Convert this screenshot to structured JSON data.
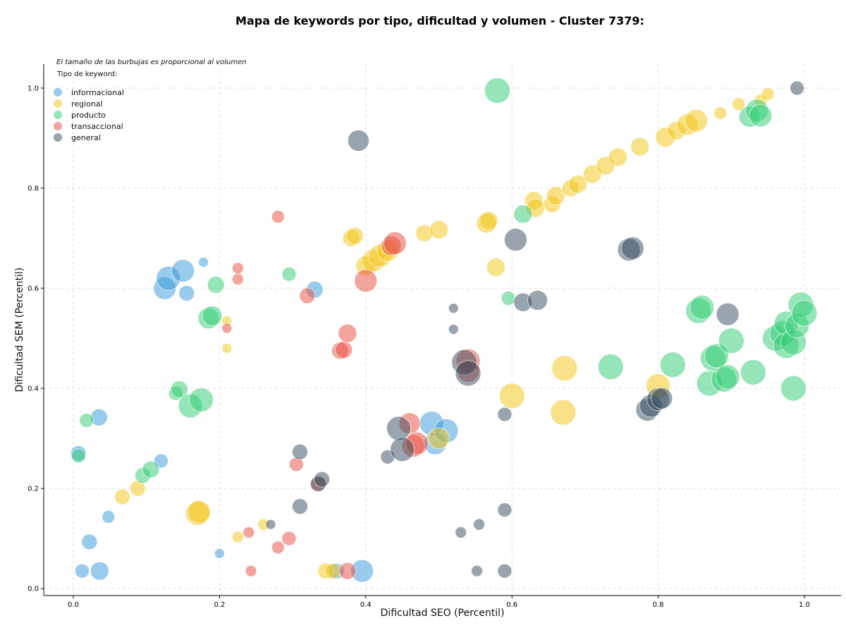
{
  "colors": {
    "informacional": "#3498db",
    "regional": "#f1c40f",
    "producto": "#2ecc71",
    "transaccional": "#e74c3c",
    "general": "#34495e"
  },
  "chart_data": {
    "type": "scatter",
    "title": "Mapa de keywords por tipo, dificultad y volumen - Cluster 7379:",
    "xlabel": "Dificultad SEO (Percentil)",
    "ylabel": "Dificultad SEM (Percentil)",
    "xlim": [
      -0.04,
      1.05
    ],
    "ylim": [
      -0.015,
      1.05
    ],
    "xticks": [
      "0.0",
      "0.2",
      "0.4",
      "0.6",
      "0.8",
      "1.0"
    ],
    "yticks": [
      "0.0",
      "0.2",
      "0.4",
      "0.6",
      "0.8",
      "1.0"
    ],
    "grid": true,
    "note": "El tamaño de las burbujas es proporcional al volumen",
    "legend": {
      "title": "Tipo de keyword:",
      "position": "top-left",
      "entries": [
        "informacional",
        "regional",
        "producto",
        "transaccional",
        "general"
      ]
    },
    "series": [
      {
        "name": "informacional",
        "points": [
          [
            0.007,
            0.27,
            11
          ],
          [
            0.012,
            0.035,
            10
          ],
          [
            0.022,
            0.093,
            11
          ],
          [
            0.035,
            0.342,
            12
          ],
          [
            0.036,
            0.035,
            13
          ],
          [
            0.048,
            0.143,
            9
          ],
          [
            0.12,
            0.255,
            10
          ],
          [
            0.125,
            0.6,
            16
          ],
          [
            0.13,
            0.62,
            17
          ],
          [
            0.15,
            0.635,
            16
          ],
          [
            0.155,
            0.59,
            11
          ],
          [
            0.178,
            0.652,
            7
          ],
          [
            0.2,
            0.07,
            7
          ],
          [
            0.33,
            0.597,
            12
          ],
          [
            0.36,
            0.035,
            11
          ],
          [
            0.395,
            0.035,
            16
          ],
          [
            0.49,
            0.33,
            17
          ],
          [
            0.495,
            0.29,
            16
          ],
          [
            0.51,
            0.315,
            17
          ]
        ]
      },
      {
        "name": "regional",
        "points": [
          [
            0.067,
            0.183,
            11
          ],
          [
            0.088,
            0.2,
            11
          ],
          [
            0.17,
            0.15,
            17
          ],
          [
            0.172,
            0.153,
            16
          ],
          [
            0.21,
            0.535,
            7
          ],
          [
            0.21,
            0.48,
            7
          ],
          [
            0.225,
            0.103,
            8
          ],
          [
            0.26,
            0.128,
            8
          ],
          [
            0.345,
            0.035,
            11
          ],
          [
            0.355,
            0.035,
            11
          ],
          [
            0.38,
            0.7,
            12
          ],
          [
            0.385,
            0.705,
            12
          ],
          [
            0.4,
            0.645,
            14
          ],
          [
            0.41,
            0.655,
            16
          ],
          [
            0.42,
            0.665,
            16
          ],
          [
            0.43,
            0.675,
            15
          ],
          [
            0.48,
            0.71,
            12
          ],
          [
            0.5,
            0.717,
            13
          ],
          [
            0.5,
            0.3,
            15
          ],
          [
            0.565,
            0.73,
            14
          ],
          [
            0.568,
            0.735,
            13
          ],
          [
            0.578,
            0.642,
            13
          ],
          [
            0.6,
            0.385,
            18
          ],
          [
            0.63,
            0.775,
            13
          ],
          [
            0.632,
            0.76,
            13
          ],
          [
            0.655,
            0.768,
            12
          ],
          [
            0.66,
            0.785,
            13
          ],
          [
            0.672,
            0.44,
            18
          ],
          [
            0.67,
            0.352,
            18
          ],
          [
            0.68,
            0.8,
            12
          ],
          [
            0.69,
            0.808,
            13
          ],
          [
            0.71,
            0.828,
            13
          ],
          [
            0.728,
            0.845,
            13
          ],
          [
            0.745,
            0.862,
            13
          ],
          [
            0.775,
            0.883,
            13
          ],
          [
            0.8,
            0.405,
            17
          ],
          [
            0.81,
            0.902,
            14
          ],
          [
            0.825,
            0.915,
            13
          ],
          [
            0.84,
            0.927,
            15
          ],
          [
            0.852,
            0.935,
            16
          ],
          [
            0.885,
            0.95,
            9
          ],
          [
            0.91,
            0.968,
            9
          ],
          [
            0.94,
            0.975,
            9
          ],
          [
            0.95,
            0.988,
            9
          ]
        ]
      },
      {
        "name": "producto",
        "points": [
          [
            0.007,
            0.265,
            10
          ],
          [
            0.018,
            0.336,
            10
          ],
          [
            0.095,
            0.226,
            11
          ],
          [
            0.106,
            0.238,
            12
          ],
          [
            0.14,
            0.39,
            10
          ],
          [
            0.145,
            0.398,
            12
          ],
          [
            0.16,
            0.365,
            17
          ],
          [
            0.175,
            0.377,
            17
          ],
          [
            0.185,
            0.54,
            15
          ],
          [
            0.19,
            0.545,
            14
          ],
          [
            0.195,
            0.607,
            12
          ],
          [
            0.295,
            0.628,
            10
          ],
          [
            0.58,
            0.995,
            18
          ],
          [
            0.595,
            0.58,
            10
          ],
          [
            0.615,
            0.748,
            13
          ],
          [
            0.735,
            0.443,
            18
          ],
          [
            0.82,
            0.447,
            18
          ],
          [
            0.855,
            0.555,
            18
          ],
          [
            0.86,
            0.562,
            17
          ],
          [
            0.87,
            0.41,
            18
          ],
          [
            0.875,
            0.46,
            18
          ],
          [
            0.88,
            0.465,
            17
          ],
          [
            0.89,
            0.418,
            18
          ],
          [
            0.895,
            0.423,
            17
          ],
          [
            0.9,
            0.495,
            18
          ],
          [
            0.925,
            0.943,
            15
          ],
          [
            0.93,
            0.432,
            18
          ],
          [
            0.935,
            0.955,
            16
          ],
          [
            0.94,
            0.945,
            16
          ],
          [
            0.96,
            0.5,
            18
          ],
          [
            0.97,
            0.51,
            18
          ],
          [
            0.975,
            0.53,
            17
          ],
          [
            0.975,
            0.485,
            18
          ],
          [
            0.985,
            0.492,
            18
          ],
          [
            0.985,
            0.4,
            18
          ],
          [
            0.99,
            0.525,
            17
          ],
          [
            0.995,
            0.567,
            18
          ],
          [
            1.0,
            0.55,
            18
          ]
        ]
      },
      {
        "name": "transaccional",
        "points": [
          [
            0.21,
            0.52,
            7
          ],
          [
            0.225,
            0.64,
            8
          ],
          [
            0.225,
            0.618,
            8
          ],
          [
            0.24,
            0.112,
            8
          ],
          [
            0.243,
            0.035,
            8
          ],
          [
            0.28,
            0.743,
            9
          ],
          [
            0.28,
            0.082,
            9
          ],
          [
            0.295,
            0.1,
            10
          ],
          [
            0.305,
            0.248,
            10
          ],
          [
            0.32,
            0.585,
            11
          ],
          [
            0.335,
            0.21,
            11
          ],
          [
            0.365,
            0.475,
            12
          ],
          [
            0.37,
            0.477,
            12
          ],
          [
            0.375,
            0.51,
            13
          ],
          [
            0.375,
            0.035,
            12
          ],
          [
            0.4,
            0.615,
            16
          ],
          [
            0.435,
            0.685,
            14
          ],
          [
            0.44,
            0.69,
            16
          ],
          [
            0.46,
            0.33,
            15
          ],
          [
            0.465,
            0.285,
            16
          ],
          [
            0.47,
            0.29,
            16
          ],
          [
            0.54,
            0.455,
            17
          ],
          [
            0.54,
            0.435,
            16
          ]
        ]
      },
      {
        "name": "general",
        "points": [
          [
            0.27,
            0.128,
            7
          ],
          [
            0.31,
            0.273,
            11
          ],
          [
            0.31,
            0.164,
            11
          ],
          [
            0.335,
            0.209,
            11
          ],
          [
            0.34,
            0.218,
            11
          ],
          [
            0.39,
            0.895,
            15
          ],
          [
            0.43,
            0.263,
            10
          ],
          [
            0.445,
            0.32,
            17
          ],
          [
            0.45,
            0.278,
            17
          ],
          [
            0.52,
            0.56,
            7
          ],
          [
            0.52,
            0.518,
            7
          ],
          [
            0.53,
            0.112,
            8
          ],
          [
            0.535,
            0.452,
            18
          ],
          [
            0.54,
            0.43,
            18
          ],
          [
            0.552,
            0.035,
            8
          ],
          [
            0.555,
            0.128,
            8
          ],
          [
            0.59,
            0.348,
            10
          ],
          [
            0.59,
            0.157,
            10
          ],
          [
            0.59,
            0.035,
            10
          ],
          [
            0.605,
            0.697,
            16
          ],
          [
            0.615,
            0.572,
            13
          ],
          [
            0.635,
            0.576,
            14
          ],
          [
            0.76,
            0.677,
            16
          ],
          [
            0.765,
            0.68,
            16
          ],
          [
            0.785,
            0.357,
            16
          ],
          [
            0.79,
            0.365,
            16
          ],
          [
            0.8,
            0.378,
            16
          ],
          [
            0.805,
            0.38,
            15
          ],
          [
            0.895,
            0.548,
            16
          ],
          [
            0.99,
            1.0,
            10
          ]
        ]
      }
    ]
  }
}
